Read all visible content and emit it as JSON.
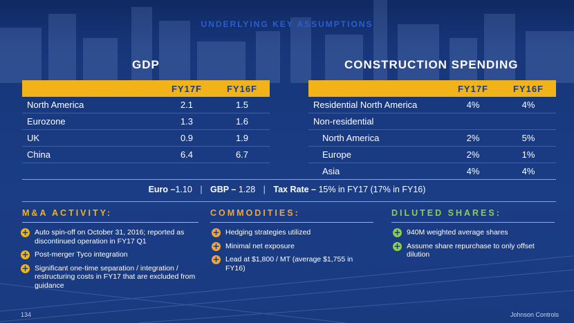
{
  "page": {
    "title": "UNDERLYING KEY ASSUMPTIONS",
    "page_number": "134",
    "brand": "Johnson Controls"
  },
  "gdp": {
    "heading": "GDP",
    "columns": [
      "FY17F",
      "FY16F"
    ],
    "rows": [
      {
        "label": "North America",
        "fy17": "2.1",
        "fy16": "1.5"
      },
      {
        "label": "Eurozone",
        "fy17": "1.3",
        "fy16": "1.6"
      },
      {
        "label": "UK",
        "fy17": "0.9",
        "fy16": "1.9"
      },
      {
        "label": "China",
        "fy17": "6.4",
        "fy16": "6.7"
      }
    ]
  },
  "construction": {
    "heading": "CONSTRUCTION SPENDING",
    "columns": [
      "FY17F",
      "FY16F"
    ],
    "rows": [
      {
        "label": "Residential North America",
        "fy17": "4%",
        "fy16": "4%"
      },
      {
        "label": "Non-residential",
        "fy17": "",
        "fy16": ""
      },
      {
        "label": "North America",
        "fy17": "2%",
        "fy16": "5%"
      },
      {
        "label": "Europe",
        "fy17": "2%",
        "fy16": "1%"
      },
      {
        "label": "Asia",
        "fy17": "4%",
        "fy16": "4%"
      }
    ]
  },
  "rates": {
    "euro_label": "Euro –",
    "euro_value": "1.10",
    "gbp_label": "GBP –",
    "gbp_value": " 1.28",
    "tax_label": "Tax Rate –",
    "tax_value": " 15% in FY17 (17% in FY16)",
    "separator": "|"
  },
  "ma": {
    "heading": "M&A ACTIVITY:",
    "items": [
      "Auto spin-off on October 31, 2016; reported as discontinued operation in FY17 Q1",
      "Post-merger Tyco integration",
      "Significant one-time separation / integration / restructuring costs in FY17 that are excluded from guidance"
    ]
  },
  "commodities": {
    "heading": "COMMODITIES:",
    "items": [
      "Hedging strategies utilized",
      "Minimal net exposure",
      "Lead at $1,800 / MT (average $1,755 in FY16)"
    ]
  },
  "shares": {
    "heading": "DILUTED SHARES:",
    "items": [
      "940M weighted average shares",
      "Assume share repurchase to only offset dilution"
    ]
  },
  "colors": {
    "gold": "#f2b319",
    "orange": "#f0a63a",
    "green": "#8ccf4d",
    "navy": "#1d3a7a"
  },
  "icons": {
    "bullet": "plus-circle-icon"
  }
}
